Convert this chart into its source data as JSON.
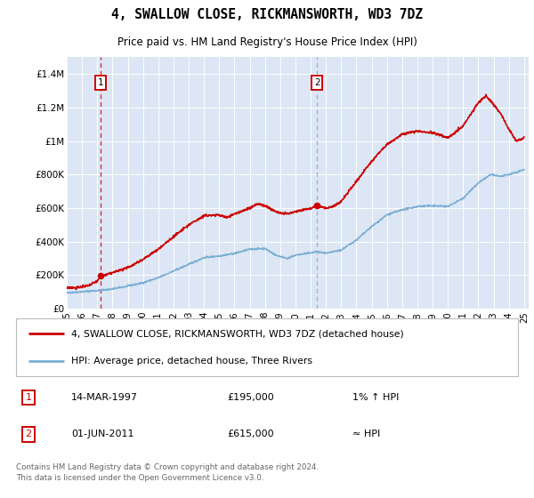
{
  "title": "4, SWALLOW CLOSE, RICKMANSWORTH, WD3 7DZ",
  "subtitle": "Price paid vs. HM Land Registry's House Price Index (HPI)",
  "background_color": "#dce6f5",
  "y_ticks": [
    0,
    200000,
    400000,
    600000,
    800000,
    1000000,
    1200000,
    1400000
  ],
  "y_tick_labels": [
    "£0",
    "£200K",
    "£400K",
    "£600K",
    "£800K",
    "£1M",
    "£1.2M",
    "£1.4M"
  ],
  "x_start_year": 1995,
  "x_end_year": 2025,
  "sale1_date": 1997.21,
  "sale1_price": 195000,
  "sale1_label": "1",
  "sale2_date": 2011.42,
  "sale2_price": 615000,
  "sale2_label": "2",
  "legend_line1": "4, SWALLOW CLOSE, RICKMANSWORTH, WD3 7DZ (detached house)",
  "legend_line2": "HPI: Average price, detached house, Three Rivers",
  "note1_num": "1",
  "note1_date": "14-MAR-1997",
  "note1_price": "£195,000",
  "note1_rel": "1% ↑ HPI",
  "note2_num": "2",
  "note2_date": "01-JUN-2011",
  "note2_price": "£615,000",
  "note2_rel": "≈ HPI",
  "footer": "Contains HM Land Registry data © Crown copyright and database right 2024.\nThis data is licensed under the Open Government Licence v3.0.",
  "hpi_color": "#7bafd4",
  "price_color": "#cc0000",
  "vline1_color": "#cc0000",
  "vline2_color": "#7bafd4"
}
